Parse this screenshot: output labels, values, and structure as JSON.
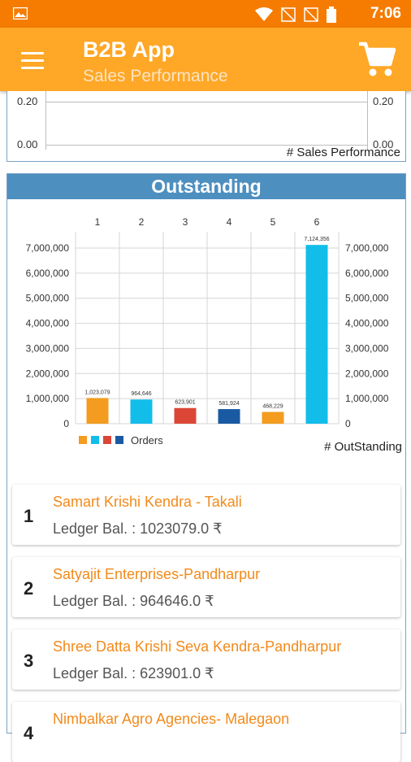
{
  "status_bar": {
    "time": "7:06"
  },
  "app_bar": {
    "title": "B2B App",
    "subtitle": "Sales Performance"
  },
  "sales_performance": {
    "y_ticks_left": [
      "0.20",
      "0.00"
    ],
    "y_ticks_right": [
      "0.20",
      "0.00"
    ],
    "label": "# Sales Performance"
  },
  "outstanding": {
    "title": "Outstanding",
    "chart_label": "# OutStanding",
    "legend": "Orders"
  },
  "chart_data": {
    "type": "bar",
    "categories": [
      "1",
      "2",
      "3",
      "4",
      "5",
      "6"
    ],
    "values": [
      1023079,
      964646,
      623901,
      581924,
      468229,
      7124356
    ],
    "value_labels": [
      "1,023,079",
      "964,646",
      "623,901",
      "581,924",
      "468,229",
      "7,124,356"
    ],
    "colors": [
      "#f39c1f",
      "#12bdea",
      "#dc4637",
      "#1a5aa3",
      "#f39c1f",
      "#12bdea"
    ],
    "y_ticks": [
      "7,000,000",
      "6,000,000",
      "5,000,000",
      "4,000,000",
      "3,000,000",
      "2,000,000",
      "1,000,000",
      "0"
    ],
    "ylim": [
      0,
      7000000
    ],
    "legend": [
      "Orders"
    ]
  },
  "customers": [
    {
      "rank": "1",
      "name": "Samart Krishi Kendra - Takali",
      "ledger": "Ledger Bal. : 1023079.0 ₹"
    },
    {
      "rank": "2",
      "name": "Satyajit Enterprises-Pandharpur",
      "ledger": "Ledger Bal. : 964646.0 ₹"
    },
    {
      "rank": "3",
      "name": "Shree Datta Krishi Seva Kendra-Pandharpur",
      "ledger": "Ledger Bal. : 623901.0 ₹"
    },
    {
      "rank": "4",
      "name": "Nimbalkar Agro Agencies- Malegaon",
      "ledger": ""
    }
  ]
}
